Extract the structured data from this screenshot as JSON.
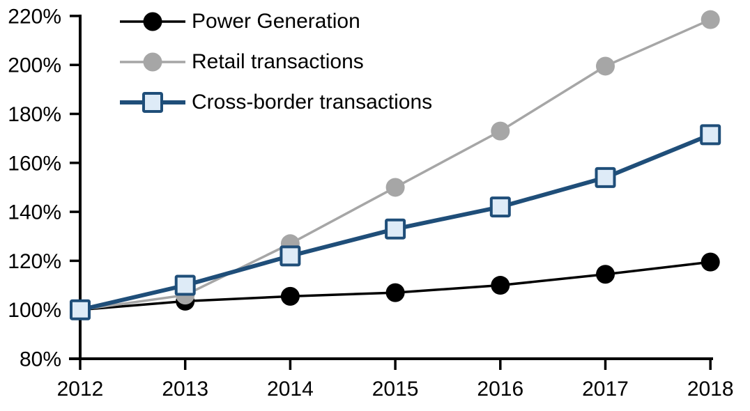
{
  "chart_data": {
    "type": "line",
    "title": "",
    "background": "#FFFFFF",
    "grid": false,
    "legend_position": "top-left",
    "axis_color": "#000000",
    "x_tick_labels": [
      "2012",
      "2013",
      "2014",
      "2015",
      "2016",
      "2017",
      "2018"
    ],
    "y_axis": {
      "min": 80,
      "max": 220,
      "step": 20,
      "suffix": "%",
      "tick_values": [
        220,
        200,
        180,
        160,
        140,
        120,
        100,
        80
      ],
      "tick_labels": [
        "220%",
        "200%",
        "180%",
        "160%",
        "140%",
        "120%",
        "100%",
        "80%"
      ]
    },
    "series": [
      {
        "name": "Power Generation",
        "color": "#000000",
        "marker": "circle",
        "values": [
          100,
          103.5,
          105.5,
          107,
          110,
          114.5,
          119.5
        ]
      },
      {
        "name": "Retail transactions",
        "color": "#A6A6A6",
        "marker": "circle",
        "values": [
          100,
          106,
          127,
          150,
          173,
          199.5,
          218.5
        ]
      },
      {
        "name": "Cross-border transactions",
        "color": "#1F4E79",
        "marker": "square",
        "marker_fill": "#DEEBF7",
        "values": [
          100,
          110,
          122,
          133,
          142,
          154,
          171.5
        ]
      }
    ]
  }
}
